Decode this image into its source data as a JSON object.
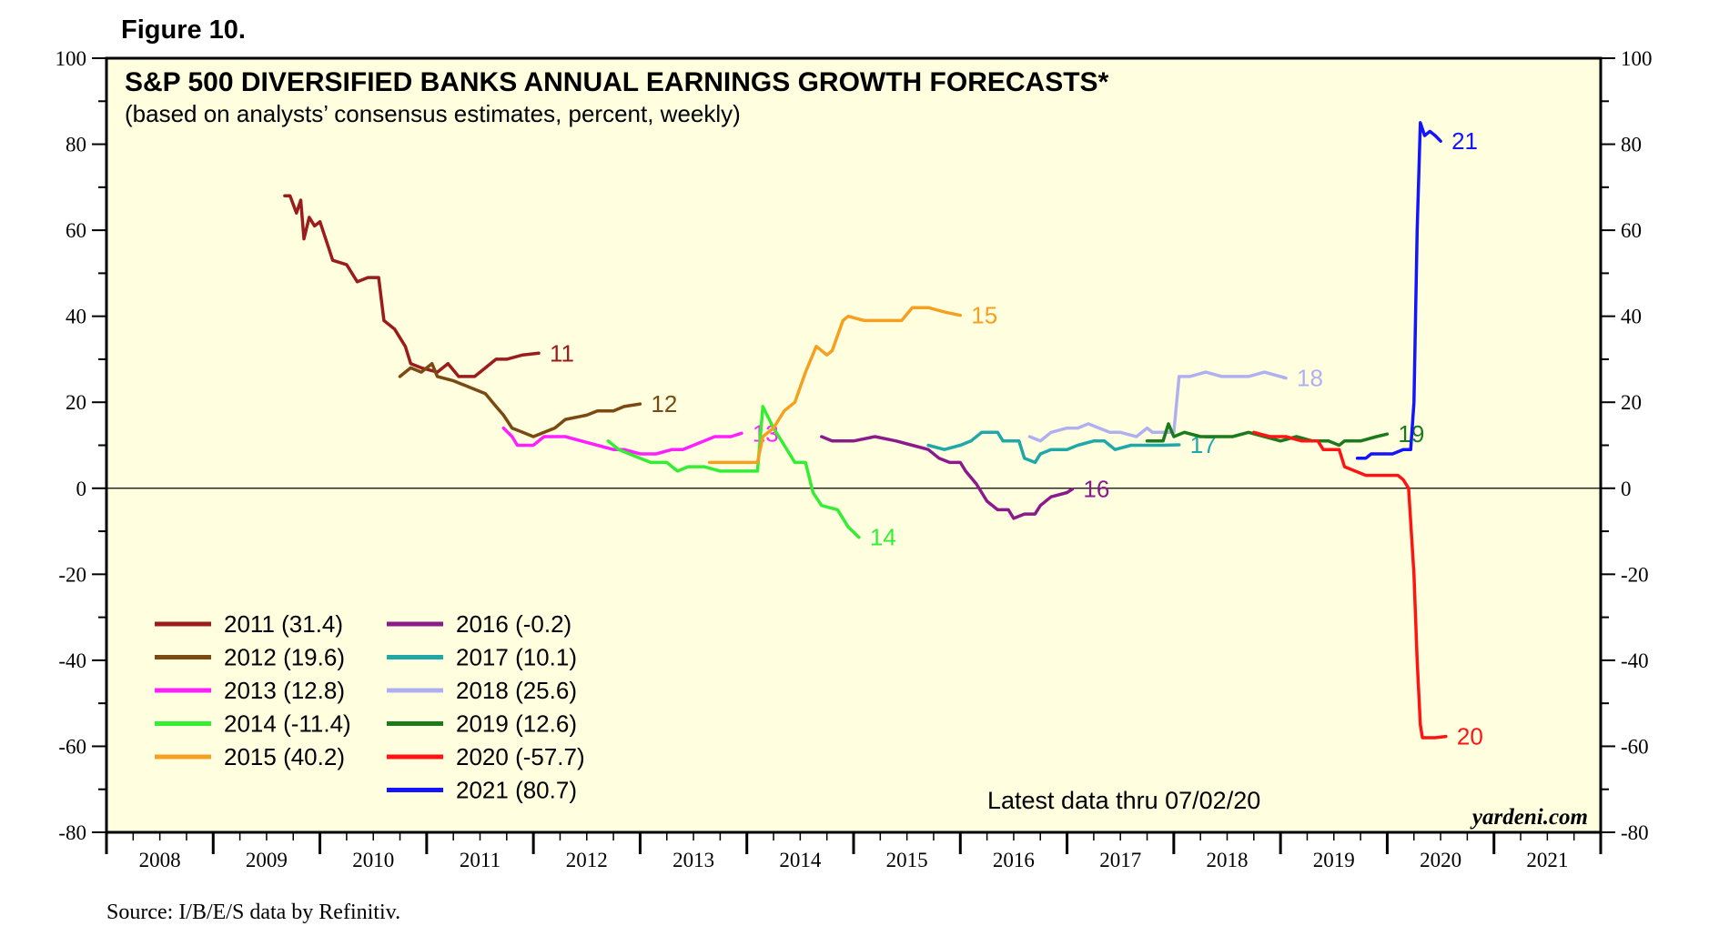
{
  "figure_label": "Figure 10.",
  "source": "Source: I/B/E/S data by Refinitiv.",
  "latest": "Latest data thru 07/02/20",
  "brand": "yardeni.com",
  "chart_data": {
    "type": "line",
    "title": "S&P 500 DIVERSIFIED BANKS ANNUAL EARNINGS GROWTH FORECASTS*",
    "subtitle": "(based on analysts’ consensus estimates, percent, weekly)",
    "xlabel": "",
    "ylabel": "",
    "xlim": [
      2008,
      2022
    ],
    "ylim": [
      -80,
      100
    ],
    "y_ticks": [
      100,
      80,
      60,
      40,
      20,
      0,
      -20,
      -40,
      -60,
      -80
    ],
    "x_tick_labels": [
      "2008",
      "2009",
      "2010",
      "2011",
      "2012",
      "2013",
      "2014",
      "2015",
      "2016",
      "2017",
      "2018",
      "2019",
      "2020",
      "2021"
    ],
    "reference_line": 0,
    "legend_position": "bottom-left",
    "series": [
      {
        "name": "2011",
        "legend": "2011 (31.4)",
        "end_label": "11",
        "color": "#9B1C1C",
        "points": [
          [
            2009.67,
            68
          ],
          [
            2009.72,
            68
          ],
          [
            2009.78,
            64
          ],
          [
            2009.82,
            67
          ],
          [
            2009.85,
            58
          ],
          [
            2009.9,
            63
          ],
          [
            2009.95,
            61
          ],
          [
            2010.0,
            62
          ],
          [
            2010.08,
            56
          ],
          [
            2010.12,
            53
          ],
          [
            2010.25,
            52
          ],
          [
            2010.35,
            48
          ],
          [
            2010.45,
            49
          ],
          [
            2010.55,
            49
          ],
          [
            2010.6,
            39
          ],
          [
            2010.7,
            37
          ],
          [
            2010.8,
            33
          ],
          [
            2010.85,
            29
          ],
          [
            2010.95,
            28
          ],
          [
            2011.1,
            27
          ],
          [
            2011.2,
            29
          ],
          [
            2011.3,
            26
          ],
          [
            2011.45,
            26
          ],
          [
            2011.55,
            28
          ],
          [
            2011.65,
            30
          ],
          [
            2011.75,
            30
          ],
          [
            2011.9,
            31
          ],
          [
            2012.05,
            31.4
          ]
        ]
      },
      {
        "name": "2012",
        "legend": "2012 (19.6)",
        "end_label": "12",
        "color": "#7A4A12",
        "points": [
          [
            2010.75,
            26
          ],
          [
            2010.85,
            28
          ],
          [
            2010.95,
            27
          ],
          [
            2011.05,
            29
          ],
          [
            2011.1,
            26
          ],
          [
            2011.25,
            25
          ],
          [
            2011.35,
            24
          ],
          [
            2011.45,
            23
          ],
          [
            2011.55,
            22
          ],
          [
            2011.65,
            19
          ],
          [
            2011.72,
            17
          ],
          [
            2011.8,
            14
          ],
          [
            2011.9,
            13
          ],
          [
            2012.0,
            12
          ],
          [
            2012.1,
            13
          ],
          [
            2012.2,
            14
          ],
          [
            2012.3,
            16
          ],
          [
            2012.5,
            17
          ],
          [
            2012.6,
            18
          ],
          [
            2012.75,
            18
          ],
          [
            2012.85,
            19
          ],
          [
            2013.0,
            19.6
          ]
        ]
      },
      {
        "name": "2013",
        "legend": "2013 (12.8)",
        "end_label": "13",
        "color": "#FF1FFF",
        "points": [
          [
            2011.72,
            14
          ],
          [
            2011.8,
            12
          ],
          [
            2011.85,
            10
          ],
          [
            2012.0,
            10
          ],
          [
            2012.1,
            12
          ],
          [
            2012.3,
            12
          ],
          [
            2012.45,
            11
          ],
          [
            2012.6,
            10
          ],
          [
            2012.75,
            9
          ],
          [
            2012.85,
            9
          ],
          [
            2013.0,
            8
          ],
          [
            2013.15,
            8
          ],
          [
            2013.3,
            9
          ],
          [
            2013.4,
            9
          ],
          [
            2013.5,
            10
          ],
          [
            2013.6,
            11
          ],
          [
            2013.7,
            12
          ],
          [
            2013.85,
            12
          ],
          [
            2013.95,
            12.8
          ]
        ]
      },
      {
        "name": "2014",
        "legend": "2014 (-11.4)",
        "end_label": "14",
        "color": "#33EE33",
        "points": [
          [
            2012.7,
            11
          ],
          [
            2012.8,
            9
          ],
          [
            2012.9,
            8
          ],
          [
            2013.0,
            7
          ],
          [
            2013.1,
            6
          ],
          [
            2013.25,
            6
          ],
          [
            2013.3,
            5
          ],
          [
            2013.35,
            4
          ],
          [
            2013.45,
            5
          ],
          [
            2013.6,
            5
          ],
          [
            2013.75,
            4
          ],
          [
            2013.9,
            4
          ],
          [
            2014.1,
            4
          ],
          [
            2014.15,
            19
          ],
          [
            2014.25,
            14
          ],
          [
            2014.35,
            10
          ],
          [
            2014.45,
            6
          ],
          [
            2014.55,
            6
          ],
          [
            2014.62,
            -1
          ],
          [
            2014.7,
            -4
          ],
          [
            2014.85,
            -5
          ],
          [
            2014.95,
            -9
          ],
          [
            2015.05,
            -11.4
          ]
        ]
      },
      {
        "name": "2015",
        "legend": "2015 (40.2)",
        "end_label": "15",
        "color": "#F5A020",
        "points": [
          [
            2013.65,
            6
          ],
          [
            2013.8,
            6
          ],
          [
            2014.0,
            6
          ],
          [
            2014.1,
            6
          ],
          [
            2014.15,
            12
          ],
          [
            2014.25,
            14
          ],
          [
            2014.35,
            18
          ],
          [
            2014.45,
            20
          ],
          [
            2014.55,
            27
          ],
          [
            2014.65,
            33
          ],
          [
            2014.75,
            31
          ],
          [
            2014.8,
            32
          ],
          [
            2014.9,
            39
          ],
          [
            2014.95,
            40
          ],
          [
            2015.1,
            39
          ],
          [
            2015.25,
            39
          ],
          [
            2015.45,
            39
          ],
          [
            2015.55,
            42
          ],
          [
            2015.7,
            42
          ],
          [
            2015.85,
            41
          ],
          [
            2016.0,
            40.2
          ]
        ]
      },
      {
        "name": "2016",
        "legend": "2016 (-0.2)",
        "end_label": "16",
        "color": "#8B1A8B",
        "points": [
          [
            2014.7,
            12
          ],
          [
            2014.8,
            11
          ],
          [
            2015.0,
            11
          ],
          [
            2015.2,
            12
          ],
          [
            2015.4,
            11
          ],
          [
            2015.55,
            10
          ],
          [
            2015.7,
            9
          ],
          [
            2015.8,
            7
          ],
          [
            2015.9,
            6
          ],
          [
            2016.0,
            6
          ],
          [
            2016.05,
            4
          ],
          [
            2016.15,
            1
          ],
          [
            2016.25,
            -3
          ],
          [
            2016.35,
            -5
          ],
          [
            2016.45,
            -5
          ],
          [
            2016.5,
            -7
          ],
          [
            2016.6,
            -6
          ],
          [
            2016.7,
            -6
          ],
          [
            2016.75,
            -4
          ],
          [
            2016.85,
            -2
          ],
          [
            2017.0,
            -1
          ],
          [
            2017.05,
            -0.2
          ]
        ]
      },
      {
        "name": "2017",
        "legend": "2017 (10.1)",
        "end_label": "17",
        "color": "#1FA8A8",
        "points": [
          [
            2015.7,
            10
          ],
          [
            2015.85,
            9
          ],
          [
            2016.0,
            10
          ],
          [
            2016.1,
            11
          ],
          [
            2016.2,
            13
          ],
          [
            2016.35,
            13
          ],
          [
            2016.4,
            11
          ],
          [
            2016.55,
            11
          ],
          [
            2016.6,
            7
          ],
          [
            2016.7,
            6
          ],
          [
            2016.75,
            8
          ],
          [
            2016.85,
            9
          ],
          [
            2017.0,
            9
          ],
          [
            2017.1,
            10
          ],
          [
            2017.25,
            11
          ],
          [
            2017.35,
            11
          ],
          [
            2017.45,
            9
          ],
          [
            2017.6,
            10
          ],
          [
            2017.75,
            10
          ],
          [
            2017.9,
            10
          ],
          [
            2018.05,
            10.1
          ]
        ]
      },
      {
        "name": "2018",
        "legend": "2018 (25.6)",
        "end_label": "18",
        "color": "#B0B0F0",
        "points": [
          [
            2016.65,
            12
          ],
          [
            2016.75,
            11
          ],
          [
            2016.85,
            13
          ],
          [
            2017.0,
            14
          ],
          [
            2017.1,
            14
          ],
          [
            2017.2,
            15
          ],
          [
            2017.3,
            14
          ],
          [
            2017.4,
            13
          ],
          [
            2017.5,
            13
          ],
          [
            2017.65,
            12
          ],
          [
            2017.75,
            14
          ],
          [
            2017.8,
            13
          ],
          [
            2018.0,
            13
          ],
          [
            2018.05,
            26
          ],
          [
            2018.15,
            26
          ],
          [
            2018.3,
            27
          ],
          [
            2018.45,
            26
          ],
          [
            2018.55,
            26
          ],
          [
            2018.7,
            26
          ],
          [
            2018.85,
            27
          ],
          [
            2019.0,
            26
          ],
          [
            2019.05,
            25.6
          ]
        ]
      },
      {
        "name": "2019",
        "legend": "2019 (12.6)",
        "end_label": "19",
        "color": "#1B7A1B",
        "points": [
          [
            2017.75,
            11
          ],
          [
            2017.9,
            11
          ],
          [
            2017.95,
            15
          ],
          [
            2018.0,
            12
          ],
          [
            2018.1,
            13
          ],
          [
            2018.25,
            12
          ],
          [
            2018.4,
            12
          ],
          [
            2018.55,
            12
          ],
          [
            2018.7,
            13
          ],
          [
            2018.85,
            12
          ],
          [
            2019.0,
            11
          ],
          [
            2019.15,
            12
          ],
          [
            2019.3,
            11
          ],
          [
            2019.45,
            11
          ],
          [
            2019.55,
            10
          ],
          [
            2019.6,
            11
          ],
          [
            2019.75,
            11
          ],
          [
            2019.9,
            12
          ],
          [
            2020.0,
            12.6
          ]
        ]
      },
      {
        "name": "2020",
        "legend": "2020 (-57.7)",
        "end_label": "20",
        "color": "#FF1414",
        "points": [
          [
            2018.75,
            13
          ],
          [
            2018.9,
            12
          ],
          [
            2019.05,
            12
          ],
          [
            2019.2,
            11
          ],
          [
            2019.35,
            11
          ],
          [
            2019.4,
            9
          ],
          [
            2019.55,
            9
          ],
          [
            2019.6,
            5
          ],
          [
            2019.7,
            4
          ],
          [
            2019.8,
            3
          ],
          [
            2019.95,
            3
          ],
          [
            2020.1,
            3
          ],
          [
            2020.15,
            2
          ],
          [
            2020.2,
            0
          ],
          [
            2020.25,
            -20
          ],
          [
            2020.28,
            -40
          ],
          [
            2020.31,
            -55
          ],
          [
            2020.33,
            -58
          ],
          [
            2020.45,
            -58
          ],
          [
            2020.55,
            -57.7
          ]
        ]
      },
      {
        "name": "2021",
        "legend": "2021 (80.7)",
        "end_label": "21",
        "color": "#1414FF",
        "points": [
          [
            2019.72,
            7
          ],
          [
            2019.8,
            7
          ],
          [
            2019.85,
            8
          ],
          [
            2019.95,
            8
          ],
          [
            2020.05,
            8
          ],
          [
            2020.15,
            9
          ],
          [
            2020.22,
            9
          ],
          [
            2020.25,
            20
          ],
          [
            2020.28,
            60
          ],
          [
            2020.31,
            85
          ],
          [
            2020.35,
            82
          ],
          [
            2020.4,
            83
          ],
          [
            2020.45,
            82
          ],
          [
            2020.5,
            80.7
          ]
        ]
      }
    ]
  }
}
